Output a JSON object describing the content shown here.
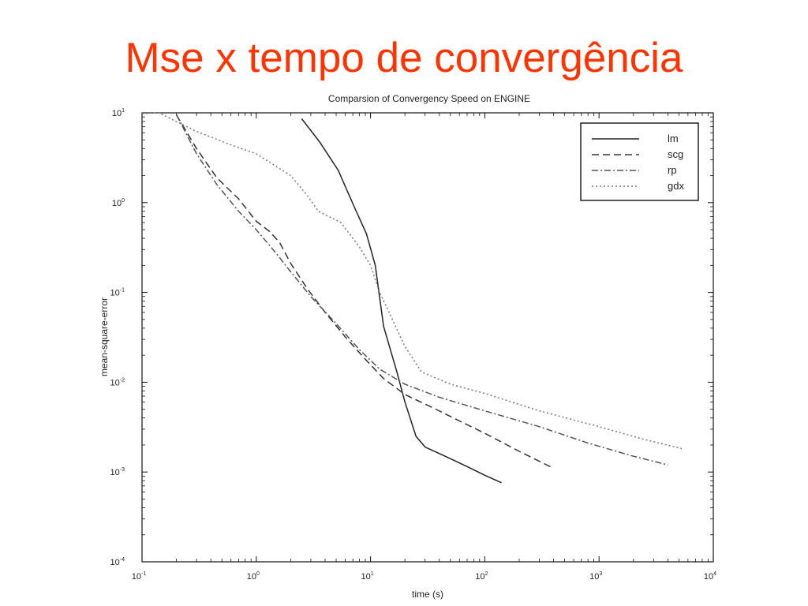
{
  "slide": {
    "title": "Mse x tempo de convergência",
    "title_color": "#ff3300"
  },
  "chart_data": {
    "type": "line",
    "title": "Comparsion of Convergency Speed on ENGINE",
    "xlabel": "time (s)",
    "ylabel": "mean-square-error",
    "xscale": "log",
    "yscale": "log",
    "xlim": [
      0.1,
      10000
    ],
    "ylim": [
      0.0001,
      10
    ],
    "x_ticks": [
      {
        "value": 0.1,
        "base": "10",
        "exp": "-1"
      },
      {
        "value": 1,
        "base": "10",
        "exp": "0"
      },
      {
        "value": 10,
        "base": "10",
        "exp": "1"
      },
      {
        "value": 100,
        "base": "10",
        "exp": "2"
      },
      {
        "value": 1000,
        "base": "10",
        "exp": "3"
      },
      {
        "value": 10000,
        "base": "10",
        "exp": "4"
      }
    ],
    "y_ticks": [
      {
        "value": 10,
        "base": "10",
        "exp": "1"
      },
      {
        "value": 1,
        "base": "10",
        "exp": "0"
      },
      {
        "value": 0.1,
        "base": "10",
        "exp": "-1"
      },
      {
        "value": 0.01,
        "base": "10",
        "exp": "-2"
      },
      {
        "value": 0.001,
        "base": "10",
        "exp": "-3"
      },
      {
        "value": 0.0001,
        "base": "10",
        "exp": "-4"
      }
    ],
    "grid": false,
    "legend_position": "top-right",
    "series": [
      {
        "name": "lm",
        "style": "solid",
        "color": "#222222",
        "points": [
          [
            2.5,
            8.6
          ],
          [
            3.6,
            4.7
          ],
          [
            5.2,
            2.3
          ],
          [
            7.2,
            0.9
          ],
          [
            9.2,
            0.45
          ],
          [
            11,
            0.2
          ],
          [
            13,
            0.042
          ],
          [
            17,
            0.013
          ],
          [
            20,
            0.006
          ],
          [
            25,
            0.0025
          ],
          [
            30,
            0.0019
          ],
          [
            45,
            0.0015
          ],
          [
            70,
            0.00115
          ],
          [
            100,
            0.00092
          ],
          [
            140,
            0.00076
          ]
        ]
      },
      {
        "name": "scg",
        "style": "dashed",
        "color": "#333333",
        "points": [
          [
            0.2,
            9.5
          ],
          [
            0.3,
            4.0
          ],
          [
            0.45,
            1.9
          ],
          [
            0.7,
            1.1
          ],
          [
            1.0,
            0.62
          ],
          [
            1.3,
            0.48
          ],
          [
            1.6,
            0.36
          ],
          [
            2.0,
            0.21
          ],
          [
            2.8,
            0.11
          ],
          [
            4.0,
            0.06
          ],
          [
            6.0,
            0.032
          ],
          [
            9.0,
            0.018
          ],
          [
            13,
            0.011
          ],
          [
            20,
            0.0073
          ],
          [
            35,
            0.0052
          ],
          [
            60,
            0.0037
          ],
          [
            100,
            0.0027
          ],
          [
            200,
            0.0017
          ],
          [
            400,
            0.0011
          ]
        ]
      },
      {
        "name": "rp",
        "style": "dashdot",
        "color": "#555555",
        "points": [
          [
            0.2,
            9.5
          ],
          [
            0.3,
            3.5
          ],
          [
            0.45,
            1.6
          ],
          [
            0.7,
            0.8
          ],
          [
            1.0,
            0.5
          ],
          [
            1.5,
            0.27
          ],
          [
            2.0,
            0.17
          ],
          [
            3.0,
            0.09
          ],
          [
            5.0,
            0.045
          ],
          [
            8.0,
            0.023
          ],
          [
            12,
            0.014
          ],
          [
            20,
            0.0095
          ],
          [
            40,
            0.0068
          ],
          [
            100,
            0.0048
          ],
          [
            300,
            0.0032
          ],
          [
            800,
            0.0021
          ],
          [
            2000,
            0.0015
          ],
          [
            4000,
            0.0012
          ]
        ]
      },
      {
        "name": "gdx",
        "style": "dotted",
        "color": "#777777",
        "points": [
          [
            0.1,
            9.8
          ],
          [
            0.14,
            10.0
          ],
          [
            0.3,
            6.2
          ],
          [
            0.6,
            4.4
          ],
          [
            1.0,
            3.5
          ],
          [
            2.0,
            2.0
          ],
          [
            2.8,
            1.2
          ],
          [
            3.5,
            0.8
          ],
          [
            5.5,
            0.6
          ],
          [
            8.0,
            0.32
          ],
          [
            10,
            0.2
          ],
          [
            12,
            0.1
          ],
          [
            15,
            0.055
          ],
          [
            20,
            0.025
          ],
          [
            28,
            0.013
          ],
          [
            50,
            0.0095
          ],
          [
            100,
            0.0075
          ],
          [
            300,
            0.0048
          ],
          [
            1000,
            0.0032
          ],
          [
            2500,
            0.0023
          ],
          [
            5500,
            0.0018
          ]
        ]
      }
    ]
  }
}
